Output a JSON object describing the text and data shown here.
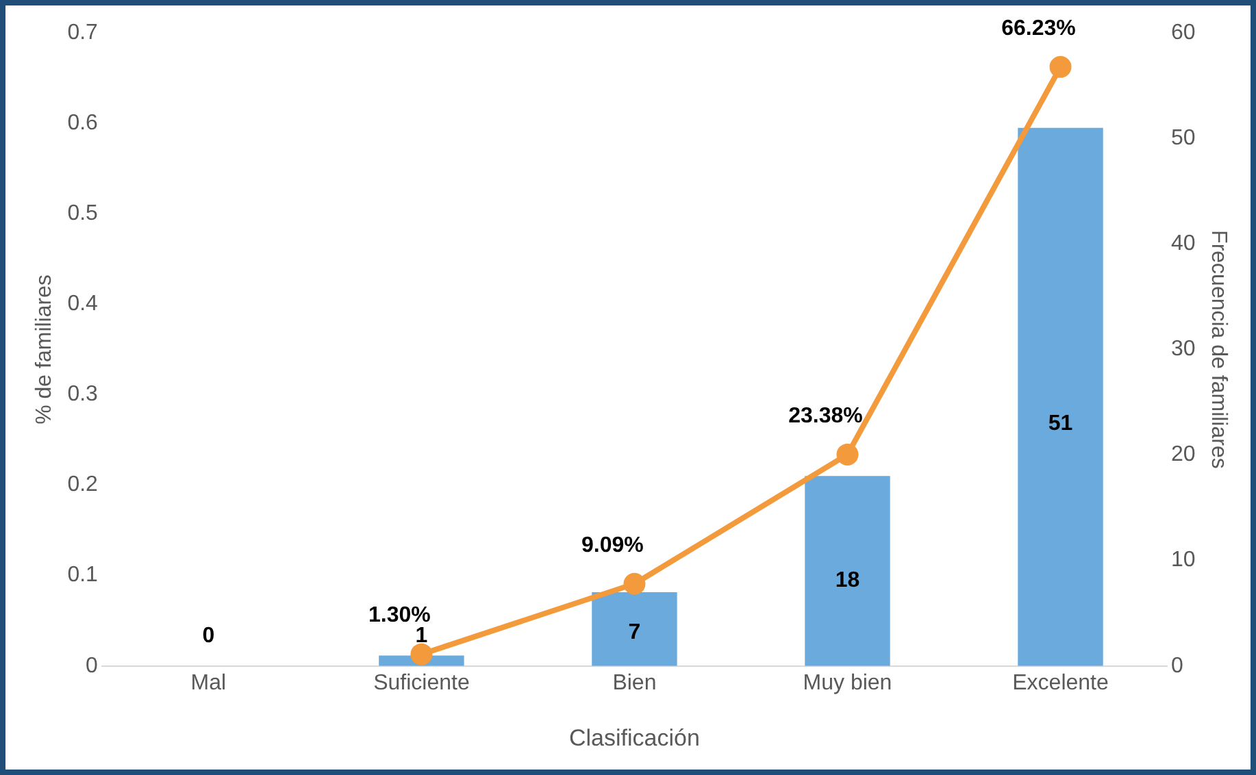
{
  "chart_data": {
    "type": "bar",
    "categories": [
      "Mal",
      "Suficiente",
      "Bien",
      "Muy bien",
      "Excelente"
    ],
    "xlabel": "Clasificación",
    "ylabel": "% de familiares",
    "y2label": "Frecuencia de familiares",
    "ylim": [
      0,
      0.7
    ],
    "yticks": [
      0,
      0.1,
      0.2,
      0.3,
      0.4,
      0.5,
      0.6,
      0.7
    ],
    "y2lim": [
      0,
      60
    ],
    "y2ticks": [
      0,
      10,
      20,
      30,
      40,
      50,
      60
    ],
    "grid": false,
    "legend": false,
    "series": [
      {
        "axis": "y2",
        "color": "#6aaadd",
        "values": [
          0,
          1,
          7,
          18,
          51
        ],
        "value_labels": [
          "0",
          "1",
          "7",
          "18",
          "51"
        ]
      },
      {
        "type": "line",
        "axis": "y",
        "color": "#f39a3c",
        "marker": "circle",
        "values": [
          null,
          0.013,
          0.0909,
          0.2338,
          0.6623
        ],
        "value_labels": [
          null,
          "1.30%",
          "9.09%",
          "23.38%",
          "66.23%"
        ]
      }
    ]
  }
}
